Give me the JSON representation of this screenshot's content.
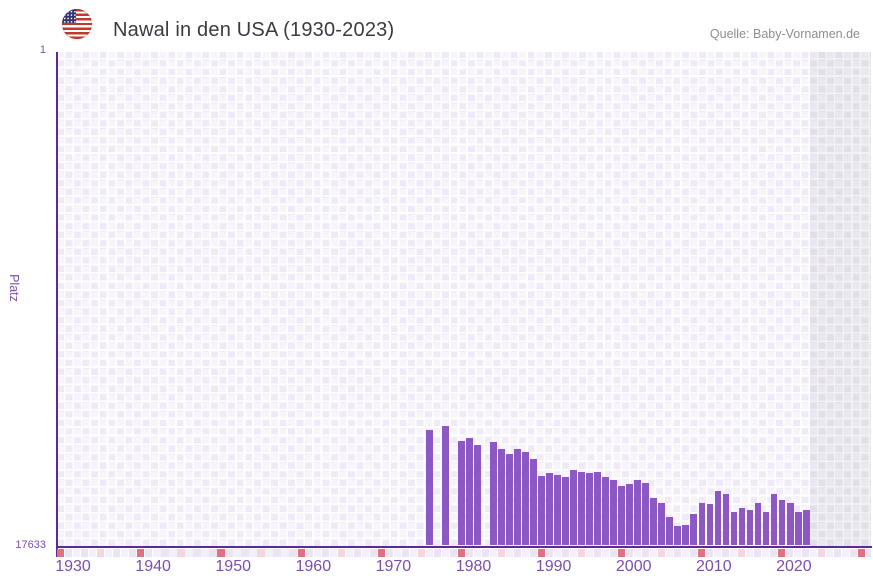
{
  "header": {
    "flag_icon": "us-flag-icon",
    "title": "Nawal in den USA (1930-2023)",
    "source": "Quelle: Baby-Vornamen.de"
  },
  "chart_data": {
    "type": "bar",
    "title": "Nawal in den USA (1930-2023)",
    "xlabel": "",
    "ylabel": "Platz",
    "y_axis": {
      "tick_labels": [
        "1",
        "17633"
      ],
      "best_rank": 1,
      "worst_rank": 17633,
      "inverted": true,
      "scale_note": "rank 1 at top; taller bar = better rank"
    },
    "x_ticks": [
      "1930",
      "1940",
      "1950",
      "1960",
      "1970",
      "1980",
      "1990",
      "2000",
      "2010",
      "2020"
    ],
    "x_range": [
      1930,
      2030
    ],
    "data_range": [
      1930,
      2023
    ],
    "no_data_region_from_year": 2024,
    "grid": true,
    "legend": "none",
    "points": [
      {
        "year": 1976,
        "rank": 13500
      },
      {
        "year": 1978,
        "rank": 13350
      },
      {
        "year": 1980,
        "rank": 13900
      },
      {
        "year": 1981,
        "rank": 13800
      },
      {
        "year": 1982,
        "rank": 14050
      },
      {
        "year": 1984,
        "rank": 13950
      },
      {
        "year": 1985,
        "rank": 14200
      },
      {
        "year": 1986,
        "rank": 14350
      },
      {
        "year": 1987,
        "rank": 14200
      },
      {
        "year": 1988,
        "rank": 14300
      },
      {
        "year": 1989,
        "rank": 14550
      },
      {
        "year": 1990,
        "rank": 15150
      },
      {
        "year": 1991,
        "rank": 15050
      },
      {
        "year": 1992,
        "rank": 15100
      },
      {
        "year": 1993,
        "rank": 15200
      },
      {
        "year": 1994,
        "rank": 14950
      },
      {
        "year": 1995,
        "rank": 15000
      },
      {
        "year": 1996,
        "rank": 15050
      },
      {
        "year": 1997,
        "rank": 15000
      },
      {
        "year": 1998,
        "rank": 15200
      },
      {
        "year": 1999,
        "rank": 15300
      },
      {
        "year": 2000,
        "rank": 15500
      },
      {
        "year": 2001,
        "rank": 15450
      },
      {
        "year": 2002,
        "rank": 15300
      },
      {
        "year": 2003,
        "rank": 15400
      },
      {
        "year": 2004,
        "rank": 15950
      },
      {
        "year": 2005,
        "rank": 16100
      },
      {
        "year": 2006,
        "rank": 16600
      },
      {
        "year": 2007,
        "rank": 16950
      },
      {
        "year": 2008,
        "rank": 16900
      },
      {
        "year": 2009,
        "rank": 16500
      },
      {
        "year": 2010,
        "rank": 16100
      },
      {
        "year": 2011,
        "rank": 16150
      },
      {
        "year": 2012,
        "rank": 15700
      },
      {
        "year": 2013,
        "rank": 15800
      },
      {
        "year": 2014,
        "rank": 16450
      },
      {
        "year": 2015,
        "rank": 16300
      },
      {
        "year": 2016,
        "rank": 16350
      },
      {
        "year": 2017,
        "rank": 16100
      },
      {
        "year": 2018,
        "rank": 16450
      },
      {
        "year": 2019,
        "rank": 15800
      },
      {
        "year": 2020,
        "rank": 16000
      },
      {
        "year": 2021,
        "rank": 16100
      },
      {
        "year": 2022,
        "rank": 16450
      },
      {
        "year": 2023,
        "rank": 16350
      }
    ]
  },
  "colors": {
    "bar": "#8c58c3",
    "axis_line": "#5a2b90",
    "axis_text": "#7a50ae",
    "title_text": "#3b3b42",
    "source_text": "#8d8d94",
    "grid_cell_a": "#efeaf7",
    "grid_cell_b": "#f7f4fb",
    "no_data_cell_a": "#e2dfe8",
    "no_data_cell_b": "#eae8ef",
    "decade_marker": "#e1717e",
    "half_decade_marker": "#f3d7de",
    "ruler_cell_a": "#f4f0f9",
    "ruler_cell_b": "#ebe5f3"
  }
}
